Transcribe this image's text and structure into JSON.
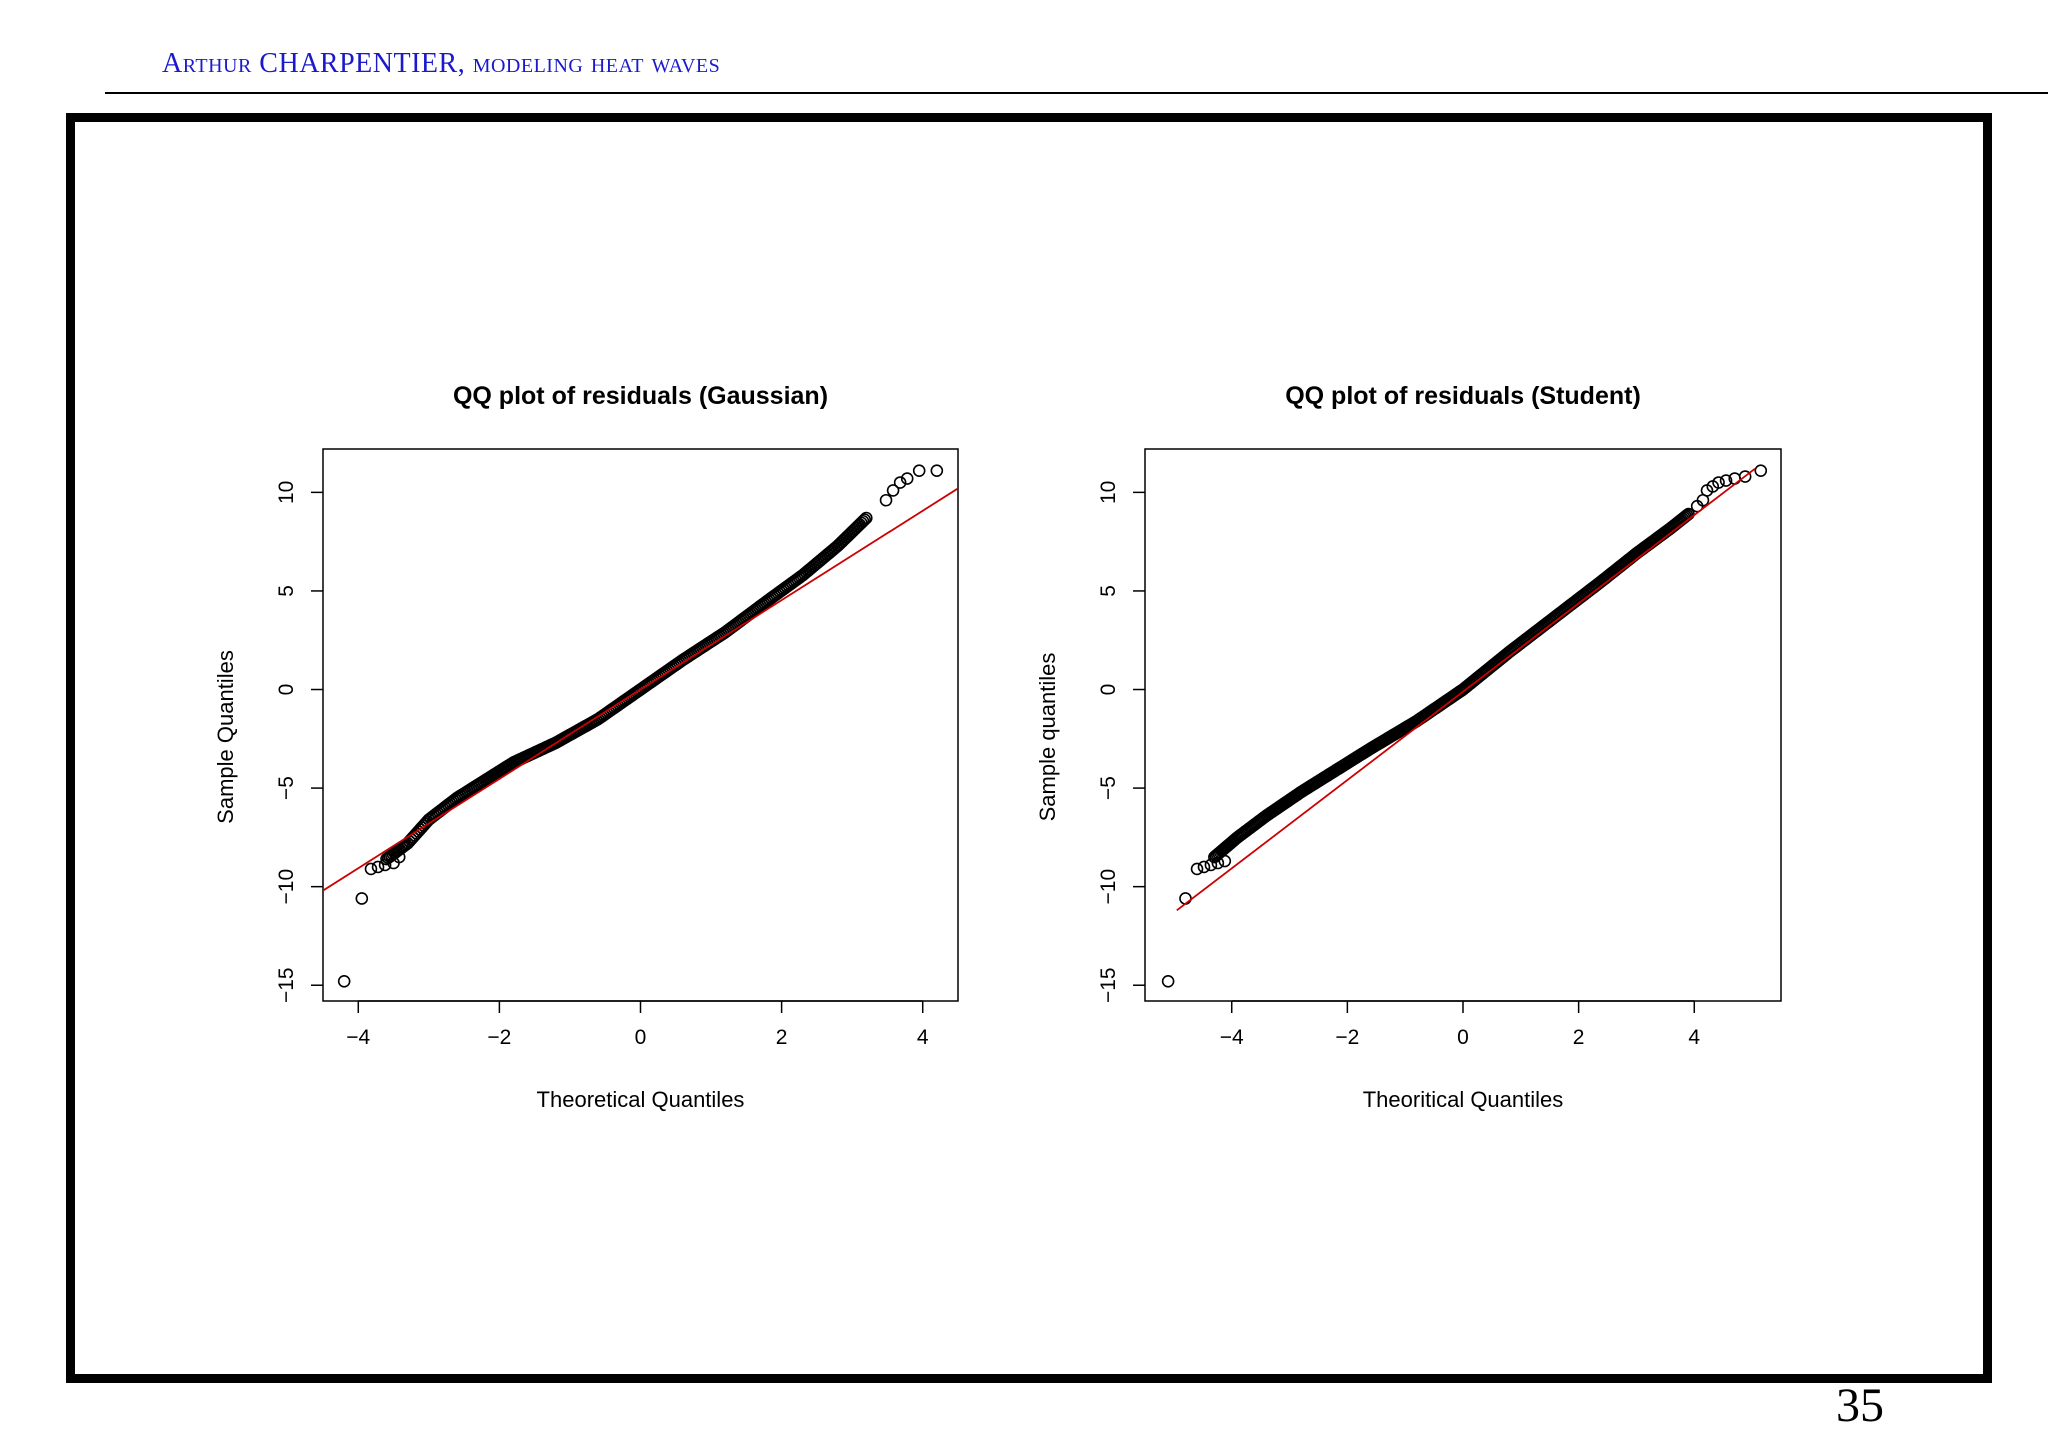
{
  "header": {
    "title": "Arthur CHARPENTIER, modeling heat waves",
    "accent_color": "#1a1acc"
  },
  "page_number": "35",
  "chart_data": [
    {
      "type": "scatter",
      "title": "QQ plot of residuals (Gaussian)",
      "xlabel": "Theoretical Quantiles",
      "ylabel": "Sample Quantiles",
      "xlim": [
        -4.5,
        4.5
      ],
      "ylim": [
        -15.8,
        12.2
      ],
      "xticks": [
        -4,
        -2,
        0,
        2,
        4
      ],
      "xtick_labels": [
        "−4",
        "−2",
        "0",
        "2",
        "4"
      ],
      "yticks": [
        -15,
        -10,
        -5,
        0,
        5,
        10
      ],
      "ytick_labels": [
        "−15",
        "−10",
        "−5",
        "0",
        "5",
        "10"
      ],
      "marker_color": "#000000",
      "reference_line": {
        "points": [
          [
            -4.5,
            -10.2
          ],
          [
            4.5,
            10.2
          ]
        ],
        "color": "#cc0000"
      },
      "curve": [
        [
          -3.6,
          -8.6
        ],
        [
          -3.3,
          -7.8
        ],
        [
          -3.0,
          -6.6
        ],
        [
          -2.6,
          -5.5
        ],
        [
          -2.2,
          -4.6
        ],
        [
          -1.8,
          -3.7
        ],
        [
          -1.2,
          -2.7
        ],
        [
          -0.6,
          -1.5
        ],
        [
          0.0,
          0.0
        ],
        [
          0.6,
          1.5
        ],
        [
          1.2,
          2.9
        ],
        [
          1.8,
          4.5
        ],
        [
          2.3,
          5.8
        ],
        [
          2.8,
          7.3
        ],
        [
          3.2,
          8.7
        ]
      ],
      "tail_points": [
        [
          -4.2,
          -14.8
        ],
        [
          -3.95,
          -10.6
        ],
        [
          -3.82,
          -9.1
        ],
        [
          -3.72,
          -9.0
        ],
        [
          -3.62,
          -8.9
        ],
        [
          -3.5,
          -8.8
        ],
        [
          -3.42,
          -8.5
        ],
        [
          3.48,
          9.6
        ],
        [
          3.58,
          10.1
        ],
        [
          3.68,
          10.5
        ],
        [
          3.78,
          10.7
        ],
        [
          3.95,
          11.1
        ],
        [
          4.2,
          11.1
        ]
      ]
    },
    {
      "type": "scatter",
      "title": "QQ plot of residuals (Student)",
      "xlabel": "Theoritical Quantiles",
      "ylabel": "Sample quantiles",
      "xlim": [
        -5.5,
        5.5
      ],
      "ylim": [
        -15.8,
        12.2
      ],
      "xticks": [
        -4,
        -2,
        0,
        2,
        4
      ],
      "xtick_labels": [
        "−4",
        "−2",
        "0",
        "2",
        "4"
      ],
      "yticks": [
        -15,
        -10,
        -5,
        0,
        5,
        10
      ],
      "ytick_labels": [
        "−15",
        "−10",
        "−5",
        "0",
        "5",
        "10"
      ],
      "marker_color": "#000000",
      "reference_line": {
        "points": [
          [
            -4.95,
            -11.2
          ],
          [
            5.05,
            11.2
          ]
        ],
        "color": "#cc0000"
      },
      "curve": [
        [
          -4.3,
          -8.5
        ],
        [
          -3.9,
          -7.5
        ],
        [
          -3.4,
          -6.4
        ],
        [
          -2.8,
          -5.2
        ],
        [
          -2.2,
          -4.1
        ],
        [
          -1.6,
          -3.0
        ],
        [
          -0.8,
          -1.6
        ],
        [
          0.0,
          0.0
        ],
        [
          0.8,
          1.9
        ],
        [
          1.6,
          3.7
        ],
        [
          2.4,
          5.5
        ],
        [
          3.0,
          6.9
        ],
        [
          3.6,
          8.2
        ],
        [
          3.9,
          8.9
        ]
      ],
      "tail_points": [
        [
          -5.1,
          -14.8
        ],
        [
          -4.8,
          -10.6
        ],
        [
          -4.6,
          -9.1
        ],
        [
          -4.48,
          -9.0
        ],
        [
          -4.36,
          -8.9
        ],
        [
          -4.24,
          -8.8
        ],
        [
          -4.12,
          -8.7
        ],
        [
          4.05,
          9.3
        ],
        [
          4.15,
          9.6
        ],
        [
          4.22,
          10.1
        ],
        [
          4.32,
          10.3
        ],
        [
          4.42,
          10.5
        ],
        [
          4.55,
          10.6
        ],
        [
          4.7,
          10.7
        ],
        [
          4.88,
          10.8
        ],
        [
          5.15,
          11.1
        ]
      ]
    }
  ]
}
